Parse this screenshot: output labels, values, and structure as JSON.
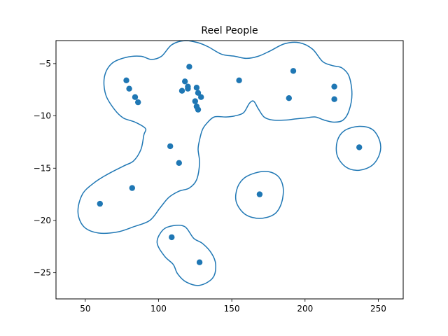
{
  "chart_data": {
    "type": "scatter",
    "title": "Reel People",
    "xlabel": "",
    "ylabel": "",
    "xlim": [
      30,
      267
    ],
    "ylim": [
      -27.5,
      -2.8
    ],
    "xticks": [
      50,
      100,
      150,
      200,
      250
    ],
    "yticks": [
      -5,
      -10,
      -15,
      -20,
      -25
    ],
    "grid": false,
    "colors": {
      "marker": "#1f77b4",
      "contour": "#1f77b4"
    },
    "points": [
      {
        "x": 121,
        "y": -5.3
      },
      {
        "x": 78,
        "y": -6.6
      },
      {
        "x": 80,
        "y": -7.4
      },
      {
        "x": 84,
        "y": -8.2
      },
      {
        "x": 86,
        "y": -8.7
      },
      {
        "x": 118,
        "y": -6.7
      },
      {
        "x": 120,
        "y": -7.2
      },
      {
        "x": 120,
        "y": -7.4
      },
      {
        "x": 116,
        "y": -7.6
      },
      {
        "x": 126,
        "y": -7.3
      },
      {
        "x": 127,
        "y": -7.8
      },
      {
        "x": 129,
        "y": -8.2
      },
      {
        "x": 125,
        "y": -8.6
      },
      {
        "x": 126,
        "y": -9.1
      },
      {
        "x": 127,
        "y": -9.4
      },
      {
        "x": 155,
        "y": -6.6
      },
      {
        "x": 192,
        "y": -5.7
      },
      {
        "x": 189,
        "y": -8.3
      },
      {
        "x": 220,
        "y": -7.2
      },
      {
        "x": 220,
        "y": -8.4
      },
      {
        "x": 108,
        "y": -12.9
      },
      {
        "x": 114,
        "y": -14.5
      },
      {
        "x": 82,
        "y": -16.9
      },
      {
        "x": 60,
        "y": -18.4
      },
      {
        "x": 237,
        "y": -13.0
      },
      {
        "x": 169,
        "y": -17.5
      },
      {
        "x": 109,
        "y": -21.6
      },
      {
        "x": 128,
        "y": -24.0
      }
    ],
    "contours": [
      [
        [
          95,
          -4.6
        ],
        [
          102,
          -4.3
        ],
        [
          109,
          -3.2
        ],
        [
          118,
          -2.8
        ],
        [
          127,
          -3.0
        ],
        [
          134,
          -3.4
        ],
        [
          143,
          -4.1
        ],
        [
          152,
          -4.3
        ],
        [
          160,
          -4.5
        ],
        [
          168,
          -4.3
        ],
        [
          176,
          -3.8
        ],
        [
          186,
          -3.1
        ],
        [
          196,
          -3.0
        ],
        [
          205,
          -3.6
        ],
        [
          212,
          -4.8
        ],
        [
          219,
          -5.2
        ],
        [
          225,
          -5.4
        ],
        [
          230,
          -6.2
        ],
        [
          232,
          -7.9
        ],
        [
          230,
          -9.5
        ],
        [
          226,
          -10.4
        ],
        [
          220,
          -10.6
        ],
        [
          213,
          -10.4
        ],
        [
          207,
          -10.1
        ],
        [
          200,
          -10.2
        ],
        [
          193,
          -10.3
        ],
        [
          187,
          -10.4
        ],
        [
          178,
          -10.4
        ],
        [
          172,
          -10.1
        ],
        [
          168,
          -9.3
        ],
        [
          165,
          -8.6
        ],
        [
          162,
          -8.8
        ],
        [
          158,
          -9.7
        ],
        [
          152,
          -10.0
        ],
        [
          146,
          -10.1
        ],
        [
          138,
          -10.1
        ],
        [
          133,
          -10.7
        ],
        [
          130,
          -11.3
        ],
        [
          128,
          -12.3
        ],
        [
          127,
          -13.2
        ],
        [
          128,
          -14.5
        ],
        [
          126,
          -16.1
        ],
        [
          121,
          -16.9
        ],
        [
          114,
          -17.2
        ],
        [
          107,
          -17.8
        ],
        [
          101,
          -18.8
        ],
        [
          94,
          -20.0
        ],
        [
          83,
          -20.6
        ],
        [
          72,
          -21.1
        ],
        [
          59,
          -21.2
        ],
        [
          49,
          -20.6
        ],
        [
          45,
          -19.2
        ],
        [
          48,
          -17.5
        ],
        [
          56,
          -16.4
        ],
        [
          65,
          -15.6
        ],
        [
          76,
          -14.8
        ],
        [
          83,
          -14.3
        ],
        [
          88,
          -13.2
        ],
        [
          90,
          -11.8
        ],
        [
          91,
          -11.2
        ],
        [
          84,
          -10.6
        ],
        [
          76,
          -10.2
        ],
        [
          70,
          -9.4
        ],
        [
          64,
          -8.0
        ],
        [
          63,
          -6.3
        ],
        [
          68,
          -5.0
        ],
        [
          78,
          -4.4
        ],
        [
          88,
          -4.3
        ],
        [
          95,
          -4.6
        ]
      ],
      [
        [
          237,
          -11.0
        ],
        [
          246,
          -11.3
        ],
        [
          251,
          -12.4
        ],
        [
          251,
          -13.6
        ],
        [
          246,
          -14.7
        ],
        [
          237,
          -15.2
        ],
        [
          228,
          -14.9
        ],
        [
          222,
          -13.8
        ],
        [
          222,
          -12.4
        ],
        [
          227,
          -11.4
        ],
        [
          237,
          -11.0
        ]
      ],
      [
        [
          172,
          -15.3
        ],
        [
          181,
          -15.7
        ],
        [
          185,
          -16.8
        ],
        [
          184,
          -18.3
        ],
        [
          179,
          -19.4
        ],
        [
          169,
          -19.8
        ],
        [
          159,
          -19.4
        ],
        [
          153,
          -18.2
        ],
        [
          154,
          -16.8
        ],
        [
          160,
          -15.8
        ],
        [
          172,
          -15.3
        ]
      ],
      [
        [
          110,
          -20.5
        ],
        [
          118,
          -20.6
        ],
        [
          124,
          -21.7
        ],
        [
          130,
          -22.2
        ],
        [
          136,
          -23.1
        ],
        [
          139,
          -24.2
        ],
        [
          137,
          -25.5
        ],
        [
          128,
          -26.2
        ],
        [
          119,
          -25.9
        ],
        [
          113,
          -25.1
        ],
        [
          110,
          -24.2
        ],
        [
          104,
          -23.4
        ],
        [
          99,
          -22.1
        ],
        [
          103,
          -20.9
        ],
        [
          110,
          -20.5
        ]
      ]
    ]
  }
}
